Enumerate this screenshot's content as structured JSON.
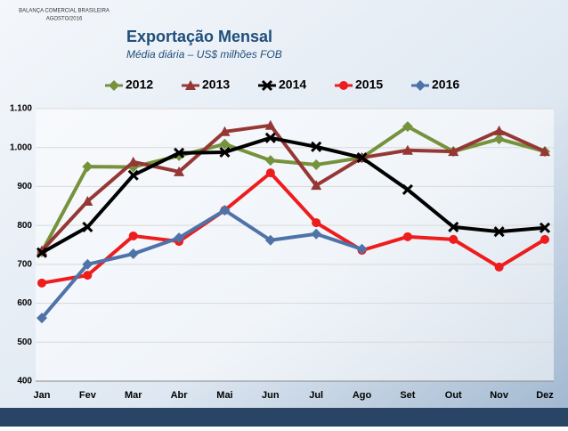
{
  "chart_data": {
    "type": "line",
    "header": [
      "BALANÇA COMERCIAL BRASILEIRA",
      "AGOSTO/2016"
    ],
    "title": "Exportação Mensal",
    "subtitle": "Média diária – US$ milhões FOB",
    "categories": [
      "Jan",
      "Fev",
      "Mar",
      "Abr",
      "Mai",
      "Jun",
      "Jul",
      "Ago",
      "Set",
      "Out",
      "Nov",
      "Dez"
    ],
    "series": [
      {
        "name": "2012",
        "color": "#76923c",
        "marker": "diamond",
        "values": [
          732,
          951,
          950,
          979,
          1009,
          967,
          956,
          974,
          1054,
          990,
          1022,
          990
        ]
      },
      {
        "name": "2013",
        "color": "#953735",
        "marker": "triangle",
        "values": [
          735,
          862,
          963,
          938,
          1041,
          1057,
          903,
          974,
          993,
          990,
          1043,
          990
        ]
      },
      {
        "name": "2014",
        "color": "#000000",
        "marker": "xsquare",
        "values": [
          730,
          796,
          929,
          986,
          988,
          1025,
          1002,
          974,
          892,
          796,
          784,
          794
        ]
      },
      {
        "name": "2015",
        "color": "#ee1c1c",
        "marker": "circle",
        "values": [
          652,
          672,
          773,
          759,
          839,
          935,
          807,
          736,
          771,
          764,
          693,
          764
        ]
      },
      {
        "name": "2016",
        "color": "#4f73a8",
        "marker": "diamond",
        "values": [
          562,
          700,
          727,
          768,
          839,
          762,
          778,
          739,
          null,
          null,
          null,
          null
        ]
      }
    ],
    "ylim": [
      400,
      1100
    ],
    "yticks": [
      400,
      500,
      600,
      700,
      800,
      900,
      {
        "value": 1000,
        "label": "1.000"
      },
      {
        "value": 1100,
        "label": "1.100"
      }
    ],
    "grid": true
  }
}
